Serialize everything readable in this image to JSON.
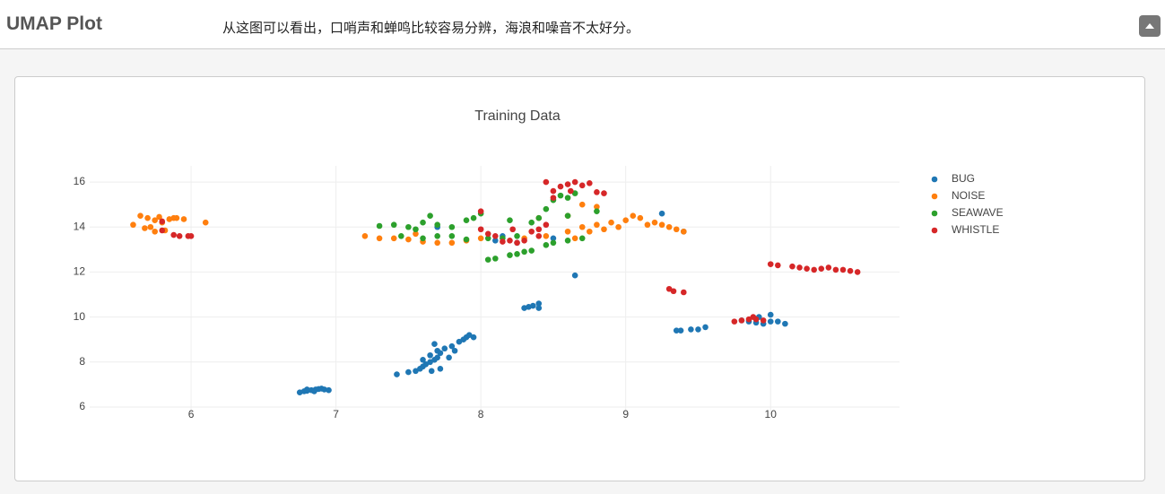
{
  "header": {
    "title": "UMAP Plot",
    "description": "从这图可以看出，口哨声和蝉鸣比较容易分辨，海浪和噪音不太好分。"
  },
  "chart_data": {
    "type": "scatter",
    "title": "Training Data",
    "xlim": [
      5.3,
      10.89
    ],
    "ylim": [
      5.68,
      16.72
    ],
    "xticks": [
      6,
      7,
      8,
      9,
      10
    ],
    "yticks": [
      6,
      8,
      10,
      12,
      14,
      16
    ],
    "grid": true,
    "legend": "right",
    "series": [
      {
        "name": "BUG",
        "color": "#1f77b4",
        "x": [
          6.75,
          6.78,
          6.8,
          6.83,
          6.86,
          6.88,
          6.9,
          6.92,
          6.95,
          6.85,
          6.8,
          7.42,
          7.5,
          7.55,
          7.58,
          7.6,
          7.62,
          7.65,
          7.68,
          7.7,
          7.65,
          7.7,
          7.72,
          7.75,
          7.78,
          7.8,
          7.82,
          7.85,
          7.88,
          7.9,
          7.92,
          7.95,
          7.6,
          7.68,
          7.72,
          7.66,
          8.3,
          8.33,
          8.36,
          8.4,
          8.4,
          8.65,
          9.35,
          9.38,
          9.45,
          9.5,
          9.55,
          9.8,
          9.85,
          9.9,
          9.95,
          10.0,
          10.05,
          10.0,
          10.1,
          9.92,
          8.1,
          8.25,
          8.5,
          9.25,
          9.4,
          7.7,
          8.15
        ],
        "y": [
          6.65,
          6.7,
          6.72,
          6.75,
          6.78,
          6.8,
          6.82,
          6.78,
          6.75,
          6.7,
          6.78,
          7.45,
          7.55,
          7.6,
          7.7,
          7.8,
          7.9,
          8.0,
          8.1,
          8.2,
          8.3,
          8.5,
          8.4,
          8.6,
          8.2,
          8.7,
          8.5,
          8.9,
          9.0,
          9.1,
          9.2,
          9.1,
          8.1,
          8.8,
          7.7,
          7.6,
          10.4,
          10.45,
          10.5,
          10.6,
          10.4,
          11.85,
          9.4,
          9.4,
          9.45,
          9.45,
          9.55,
          9.85,
          9.8,
          9.75,
          9.7,
          9.8,
          9.8,
          10.1,
          9.7,
          10.0,
          13.4,
          13.3,
          13.5,
          14.6,
          13.8,
          14.0,
          13.6
        ]
      },
      {
        "name": "NOISE",
        "color": "#ff7f0e",
        "x": [
          5.6,
          5.65,
          5.7,
          5.72,
          5.75,
          5.78,
          5.8,
          5.82,
          5.85,
          5.88,
          5.9,
          5.68,
          5.75,
          5.95,
          6.1,
          7.2,
          7.3,
          7.4,
          7.5,
          7.6,
          7.7,
          7.8,
          7.9,
          8.0,
          8.3,
          8.45,
          8.6,
          8.7,
          8.8,
          8.9,
          9.0,
          9.05,
          9.1,
          9.2,
          9.3,
          9.35,
          9.4,
          8.75,
          8.85,
          8.95,
          9.15,
          8.7,
          8.8,
          8.4,
          8.6,
          7.55,
          9.25,
          8.65
        ],
        "y": [
          14.1,
          14.5,
          14.4,
          14.0,
          14.3,
          14.45,
          14.2,
          13.85,
          14.35,
          14.4,
          14.4,
          13.95,
          13.8,
          14.35,
          14.2,
          13.6,
          13.5,
          13.5,
          13.45,
          13.35,
          13.3,
          13.3,
          13.4,
          13.5,
          13.5,
          13.6,
          13.8,
          14.0,
          14.1,
          14.2,
          14.3,
          14.5,
          14.4,
          14.2,
          14.0,
          13.9,
          13.8,
          13.8,
          13.9,
          14.0,
          14.1,
          15.0,
          14.9,
          14.4,
          14.5,
          13.7,
          14.1,
          13.5
        ]
      },
      {
        "name": "SEAWAVE",
        "color": "#2ca02c",
        "x": [
          7.3,
          7.4,
          7.5,
          7.55,
          7.6,
          7.65,
          7.7,
          7.8,
          7.9,
          7.95,
          7.7,
          7.8,
          7.9,
          8.05,
          8.05,
          8.1,
          8.2,
          8.25,
          8.3,
          8.35,
          8.45,
          8.5,
          8.6,
          8.7,
          8.2,
          8.35,
          8.4,
          8.45,
          8.5,
          8.55,
          8.6,
          8.65,
          8.6,
          8.8,
          8.25,
          8.15,
          8.0,
          7.45,
          7.6
        ],
        "y": [
          14.05,
          14.1,
          14.0,
          13.9,
          14.2,
          14.5,
          14.1,
          14.0,
          14.3,
          14.4,
          13.6,
          13.6,
          13.45,
          13.5,
          12.55,
          12.6,
          12.75,
          12.8,
          12.9,
          12.95,
          13.2,
          13.3,
          13.4,
          13.5,
          14.3,
          14.2,
          14.4,
          14.8,
          15.2,
          15.4,
          15.3,
          15.5,
          14.5,
          14.7,
          13.6,
          13.5,
          14.6,
          13.6,
          13.5
        ]
      },
      {
        "name": "WHISTLE",
        "color": "#d62728",
        "x": [
          5.8,
          5.8,
          5.88,
          5.92,
          5.98,
          6.0,
          8.0,
          8.0,
          8.05,
          8.1,
          8.2,
          8.25,
          8.3,
          8.22,
          8.35,
          8.4,
          8.45,
          8.5,
          8.55,
          8.6,
          8.65,
          8.7,
          8.75,
          8.5,
          8.45,
          8.62,
          8.8,
          8.85,
          8.4,
          8.15,
          9.3,
          9.33,
          9.4,
          9.75,
          9.8,
          9.85,
          9.9,
          9.95,
          9.88,
          10.0,
          10.05,
          10.15,
          10.2,
          10.25,
          10.3,
          10.35,
          10.4,
          10.45,
          10.5,
          10.55,
          10.6
        ],
        "y": [
          14.25,
          13.85,
          13.65,
          13.6,
          13.6,
          13.6,
          14.7,
          13.9,
          13.7,
          13.6,
          13.4,
          13.3,
          13.4,
          13.9,
          13.8,
          13.9,
          14.1,
          15.3,
          15.8,
          15.9,
          16.0,
          15.85,
          15.95,
          15.6,
          16.0,
          15.6,
          15.55,
          15.5,
          13.6,
          13.35,
          11.25,
          11.15,
          11.1,
          9.8,
          9.85,
          9.9,
          9.9,
          9.85,
          10.0,
          12.35,
          12.3,
          12.25,
          12.2,
          12.15,
          12.1,
          12.15,
          12.2,
          12.1,
          12.1,
          12.05,
          12.0
        ]
      }
    ]
  }
}
